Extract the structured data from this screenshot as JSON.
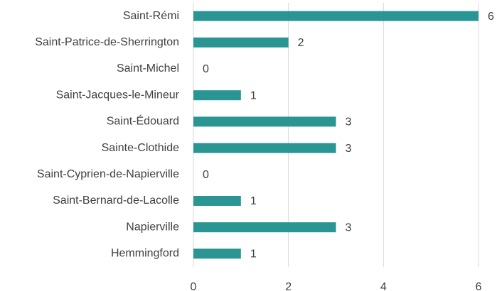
{
  "chart_data": {
    "type": "barh",
    "categories": [
      "Saint-Rémi",
      "Saint-Patrice-de-Sherrington",
      "Saint-Michel",
      "Saint-Jacques-le-Mineur",
      "Saint-Édouard",
      "Sainte-Clothide",
      "Saint-Cyprien-de-Napierville",
      "Saint-Bernard-de-Lacolle",
      "Napierville",
      "Hemmingford"
    ],
    "values": [
      6,
      2,
      0,
      1,
      3,
      3,
      0,
      1,
      3,
      1
    ],
    "color": "#2a9592",
    "xlim": [
      0,
      6
    ],
    "xticks": [
      0,
      2,
      4,
      6
    ],
    "grid": true
  }
}
